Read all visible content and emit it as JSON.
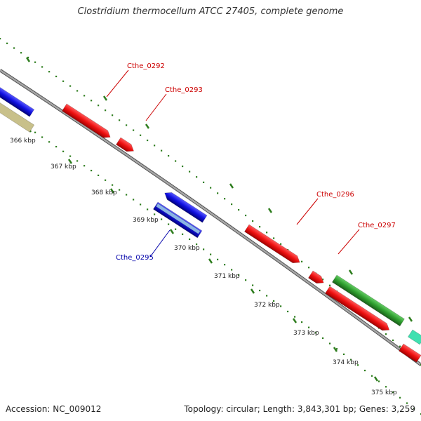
{
  "title": "Clostridium thermocellum ATCC 27405, complete genome",
  "footer": {
    "accession": "Accession: NC_009012",
    "summary": "Topology: circular; Length: 3,843,301 bp; Genes: 3,259"
  },
  "colors": {
    "backbone": "#8a8a8a",
    "tick": "#2e7d1e",
    "forward_label": "#cc0000",
    "reverse_label": "#0000aa"
  },
  "kbp_labels": [
    "366 kbp",
    "367 kbp",
    "368 kbp",
    "369 kbp",
    "370 kbp",
    "371 kbp",
    "372 kbp",
    "373 kbp",
    "374 kbp",
    "375 kbp"
  ],
  "gene_labels": [
    {
      "text": "Cthe_0292",
      "strand": "forward"
    },
    {
      "text": "Cthe_0293",
      "strand": "forward"
    },
    {
      "text": "Cthe_0295",
      "strand": "reverse"
    },
    {
      "text": "Cthe_0296",
      "strand": "forward"
    },
    {
      "text": "Cthe_0297",
      "strand": "forward"
    }
  ],
  "features": [
    {
      "name": "blue-feature-left",
      "color": "#1010e0"
    },
    {
      "name": "olive-feature-left",
      "color": "#c8c08a"
    },
    {
      "name": "red-gene-0292",
      "color": "#ee1111"
    },
    {
      "name": "red-gene-0293",
      "color": "#ee1111"
    },
    {
      "name": "blue-gene-upper",
      "color": "#1010e0"
    },
    {
      "name": "blue-gene-0295",
      "color": "#1010e0"
    },
    {
      "name": "steelblue-feature-0295",
      "color": "#6a9ad0"
    },
    {
      "name": "red-gene-0296",
      "color": "#ee1111"
    },
    {
      "name": "red-gene-0297",
      "color": "#ee1111"
    },
    {
      "name": "green-feature",
      "color": "#2e9e2e"
    },
    {
      "name": "red-gene-lower",
      "color": "#ee1111"
    },
    {
      "name": "teal-feature",
      "color": "#40e0b0"
    }
  ]
}
